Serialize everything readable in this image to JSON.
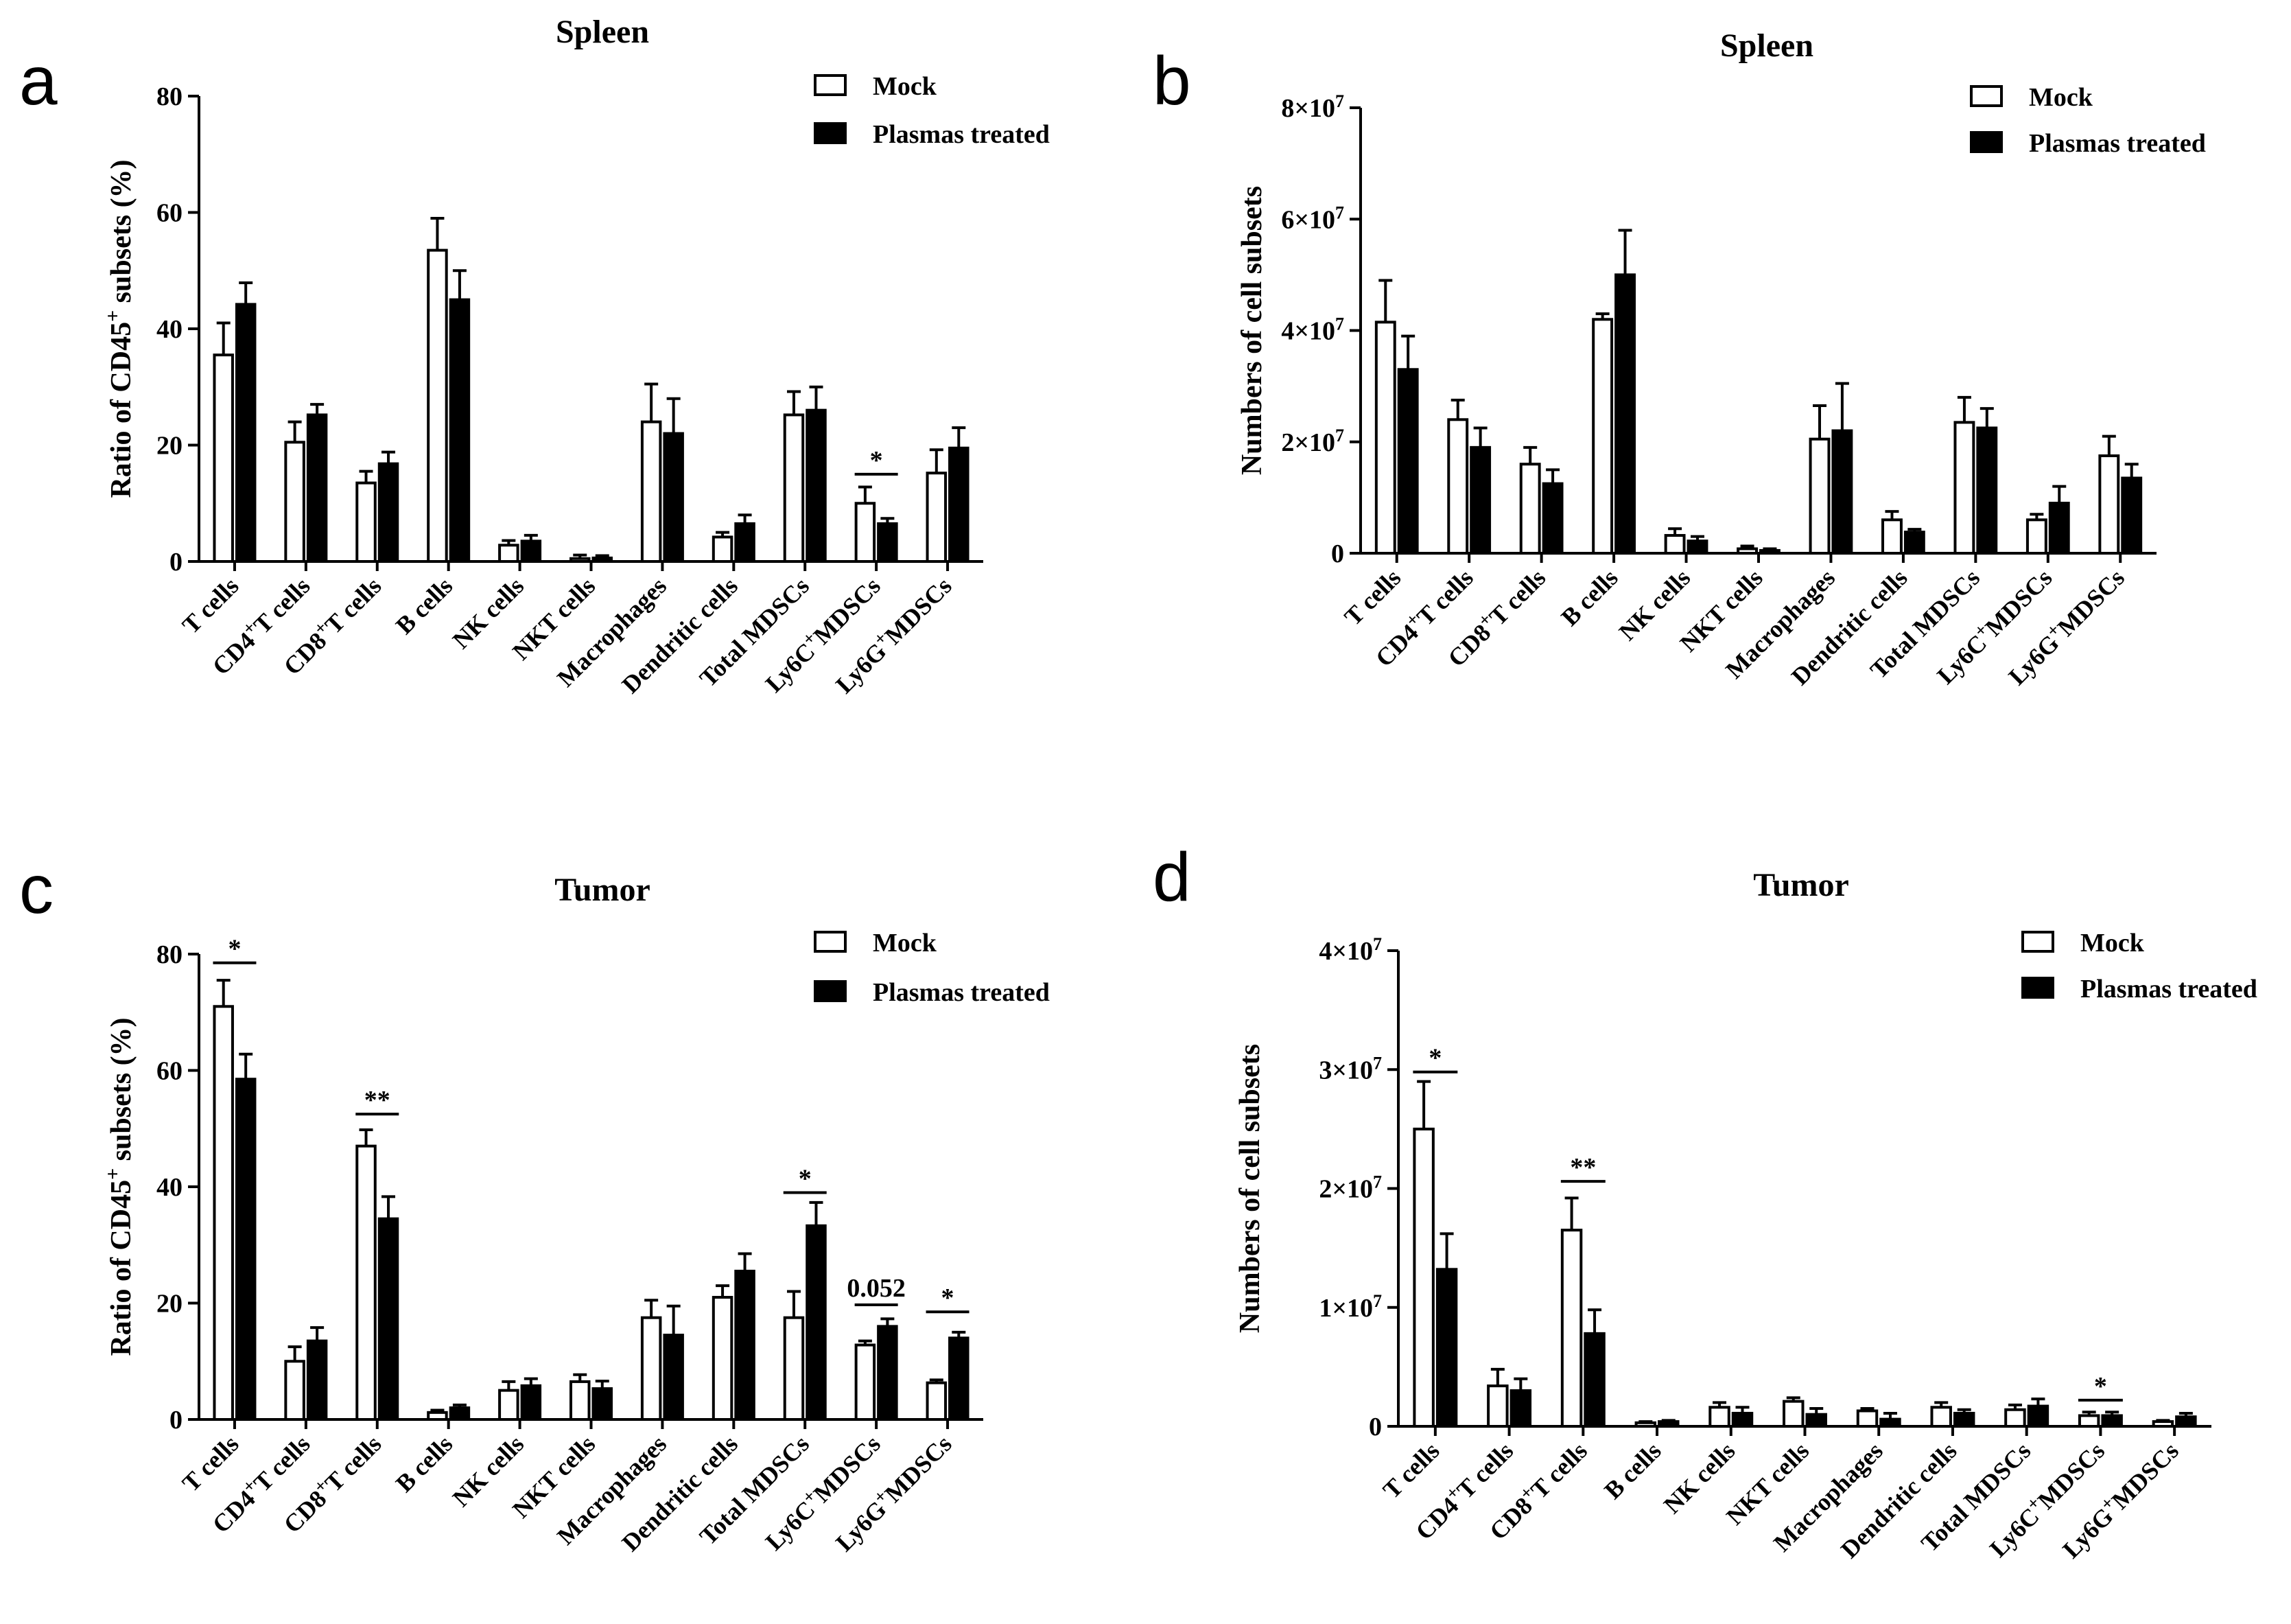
{
  "panels": [
    "a",
    "b",
    "c",
    "d"
  ],
  "chart_data": [
    {
      "type": "bar",
      "panel": "a",
      "title": "Spleen",
      "ylabel": "Ratio of CD45+ subsets (%)",
      "ylabel_parts": [
        "Ratio of CD45",
        "+",
        " subsets  (%)"
      ],
      "ylim": [
        0,
        80
      ],
      "yticks": [
        0,
        20,
        40,
        60,
        80
      ],
      "ytick_labels": [
        "0",
        "20",
        "40",
        "60",
        "80"
      ],
      "categories": [
        "T cells",
        "CD4+T cells",
        "CD8+T cells",
        "B cells",
        "NK cells",
        "NKT cells",
        "Macrophages",
        "Dendritic cells",
        "Total MDSCs",
        "Ly6C+MDSCs",
        "Ly6G+MDSCs"
      ],
      "category_parts": [
        [
          "T cells"
        ],
        [
          "CD4",
          "+",
          "T cells"
        ],
        [
          "CD8",
          "+",
          "T cells"
        ],
        [
          "B cells"
        ],
        [
          "NK cells"
        ],
        [
          "NKT cells"
        ],
        [
          "Macrophages"
        ],
        [
          "Dendritic cells"
        ],
        [
          "Total MDSCs"
        ],
        [
          "Ly6C",
          "+",
          "MDSCs"
        ],
        [
          "Ly6G",
          "+",
          "MDSCs"
        ]
      ],
      "series": [
        {
          "name": "Mock",
          "values": [
            35.5,
            20.5,
            13.5,
            53.5,
            2.8,
            0.5,
            24,
            4.2,
            25.2,
            10,
            15.2
          ],
          "errors": [
            5.5,
            3.5,
            2,
            5.5,
            0.8,
            0.6,
            6.5,
            0.8,
            4,
            2.8,
            4
          ]
        },
        {
          "name": "Plasmas treated",
          "values": [
            44.2,
            25.2,
            16.8,
            45,
            3.5,
            0.6,
            22,
            6.5,
            26,
            6.5,
            19.5
          ],
          "errors": [
            3.7,
            1.8,
            2,
            5,
            1,
            0.4,
            6,
            1.5,
            4,
            0.9,
            3.5
          ]
        }
      ],
      "significance": [
        {
          "category": "Ly6C+MDSCs",
          "label": "*",
          "value": 15
        }
      ],
      "legend": [
        "Mock",
        "Plasmas treated"
      ],
      "legend_position": "top-right"
    },
    {
      "type": "bar",
      "panel": "b",
      "title": "Spleen",
      "ylabel": "Numbers of cell subsets",
      "ylabel_parts": [
        "Numbers of cell subsets"
      ],
      "ylim": [
        0,
        80000000
      ],
      "yticks": [
        0,
        20000000,
        40000000,
        60000000,
        80000000
      ],
      "ytick_labels": [
        [
          "0"
        ],
        [
          "2×10",
          "7"
        ],
        [
          "4×10",
          "7"
        ],
        [
          "6×10",
          "7"
        ],
        [
          "8×10",
          "7"
        ]
      ],
      "categories": [
        "T cells",
        "CD4+T cells",
        "CD8+T cells",
        "B cells",
        "NK cells",
        "NKT cells",
        "Macrophages",
        "Dendritic cells",
        "Total MDSCs",
        "Ly6C+MDSCs",
        "Ly6G+MDSCs"
      ],
      "category_parts": [
        [
          "T cells"
        ],
        [
          "CD4",
          "+",
          "T cells"
        ],
        [
          "CD8",
          "+",
          "T cells"
        ],
        [
          "B cells"
        ],
        [
          "NK cells"
        ],
        [
          "NKT cells"
        ],
        [
          "Macrophages"
        ],
        [
          "Dendritic cells"
        ],
        [
          "Total MDSCs"
        ],
        [
          "Ly6C",
          "+",
          "MDSCs"
        ],
        [
          "Ly6G",
          "+",
          "MDSCs"
        ]
      ],
      "series": [
        {
          "name": "Mock",
          "values": [
            41500000,
            24000000,
            16000000,
            42000000,
            3200000,
            800000,
            20500000,
            6000000,
            23500000,
            6000000,
            17500000
          ],
          "errors": [
            7500000,
            3500000,
            3000000,
            1000000,
            1200000,
            500000,
            6000000,
            1500000,
            4500000,
            1000000,
            3500000
          ]
        },
        {
          "name": "Plasmas treated",
          "values": [
            33000000,
            19000000,
            12500000,
            50000000,
            2200000,
            500000,
            22000000,
            3800000,
            22500000,
            9000000,
            13500000
          ],
          "errors": [
            6000000,
            3500000,
            2500000,
            8000000,
            800000,
            300000,
            8500000,
            500000,
            3500000,
            3000000,
            2500000
          ]
        }
      ],
      "significance": [],
      "legend": [
        "Mock",
        "Plasmas treated"
      ],
      "legend_position": "top-right"
    },
    {
      "type": "bar",
      "panel": "c",
      "title": "Tumor",
      "ylabel": "Ratio of CD45+ subsets (%)",
      "ylabel_parts": [
        "Ratio of CD45",
        "+",
        " subsets  (%)"
      ],
      "ylim": [
        0,
        80
      ],
      "yticks": [
        0,
        20,
        40,
        60,
        80
      ],
      "ytick_labels": [
        "0",
        "20",
        "40",
        "60",
        "80"
      ],
      "categories": [
        "T cells",
        "CD4+T cells",
        "CD8+T cells",
        "B cells",
        "NK cells",
        "NKT cells",
        "Macrophages",
        "Dendritic cells",
        "Total MDSCs",
        "Ly6C+MDSCs",
        "Ly6G+MDSCs"
      ],
      "category_parts": [
        [
          "T cells"
        ],
        [
          "CD4",
          "+",
          "T cells"
        ],
        [
          "CD8",
          "+",
          "T cells"
        ],
        [
          "B cells"
        ],
        [
          "NK cells"
        ],
        [
          "NKT cells"
        ],
        [
          "Macrophages"
        ],
        [
          "Dendritic cells"
        ],
        [
          "Total MDSCs"
        ],
        [
          "Ly6C",
          "+",
          "MDSCs"
        ],
        [
          "Ly6G",
          "+",
          "MDSCs"
        ]
      ],
      "series": [
        {
          "name": "Mock",
          "values": [
            71,
            10,
            47,
            1.2,
            5,
            6.5,
            17.5,
            21,
            17.5,
            12.8,
            6.3
          ],
          "errors": [
            4.5,
            2.5,
            2.8,
            0.4,
            1.5,
            1.2,
            3,
            2,
            4.5,
            0.7,
            0.5
          ]
        },
        {
          "name": "Plasmas treated",
          "values": [
            58.5,
            13.5,
            34.5,
            2,
            5.8,
            5.3,
            14.5,
            25.5,
            33.3,
            16,
            14
          ],
          "errors": [
            4.3,
            2.3,
            3.8,
            0.5,
            1.2,
            1.3,
            5,
            3,
            4,
            1.3,
            1
          ]
        }
      ],
      "significance": [
        {
          "category": "T cells",
          "label": "*",
          "value": 78.5
        },
        {
          "category": "CD8+T cells",
          "label": "**",
          "value": 52.5
        },
        {
          "category": "Total MDSCs",
          "label": "*",
          "value": 39
        },
        {
          "category": "Ly6C+MDSCs",
          "label": "0.052",
          "value": 19.7
        },
        {
          "category": "Ly6G+MDSCs",
          "label": "*",
          "value": 18.5
        }
      ],
      "legend": [
        "Mock",
        "Plasmas treated"
      ],
      "legend_position": "top-right"
    },
    {
      "type": "bar",
      "panel": "d",
      "title": "Tumor",
      "ylabel": "Numbers of cell subsets",
      "ylabel_parts": [
        "Numbers of cell subsets"
      ],
      "ylim": [
        0,
        40000000
      ],
      "yticks": [
        0,
        10000000,
        20000000,
        30000000,
        40000000
      ],
      "ytick_labels": [
        [
          "0"
        ],
        [
          "1×10",
          "7"
        ],
        [
          "2×10",
          "7"
        ],
        [
          "3×10",
          "7"
        ],
        [
          "4×10",
          "7"
        ]
      ],
      "categories": [
        "T cells",
        "CD4+T cells",
        "CD8+T cells",
        "B cells",
        "NK cells",
        "NKT cells",
        "Macrophages",
        "Dendritic cells",
        "Total MDSCs",
        "Ly6C+MDSCs",
        "Ly6G+MDSCs"
      ],
      "category_parts": [
        [
          "T cells"
        ],
        [
          "CD4",
          "+",
          "T cells"
        ],
        [
          "CD8",
          "+",
          "T cells"
        ],
        [
          "B cells"
        ],
        [
          "NK cells"
        ],
        [
          "NKT cells"
        ],
        [
          "Macrophages"
        ],
        [
          "Dendritic cells"
        ],
        [
          "Total MDSCs"
        ],
        [
          "Ly6C",
          "+",
          "MDSCs"
        ],
        [
          "Ly6G",
          "+",
          "MDSCs"
        ]
      ],
      "series": [
        {
          "name": "Mock",
          "values": [
            25000000,
            3400000,
            16500000,
            300000,
            1600000,
            2100000,
            1300000,
            1600000,
            1400000,
            900000,
            400000
          ],
          "errors": [
            4000000,
            1400000,
            2700000,
            100000,
            400000,
            300000,
            200000,
            400000,
            400000,
            300000,
            100000
          ]
        },
        {
          "name": "Plasmas treated",
          "values": [
            13200000,
            3000000,
            7800000,
            400000,
            1100000,
            1000000,
            600000,
            1100000,
            1700000,
            900000,
            800000
          ],
          "errors": [
            3000000,
            1000000,
            2000000,
            100000,
            500000,
            500000,
            500000,
            300000,
            600000,
            300000,
            300000
          ]
        }
      ],
      "significance": [
        {
          "category": "T cells",
          "label": "*",
          "value": 29800000
        },
        {
          "category": "CD8+T cells",
          "label": "**",
          "value": 20600000
        },
        {
          "category": "Ly6C+MDSCs",
          "label": "*",
          "value": 2200000
        }
      ],
      "legend": [
        "Mock",
        "Plasmas treated"
      ],
      "legend_position": "top-right"
    }
  ]
}
